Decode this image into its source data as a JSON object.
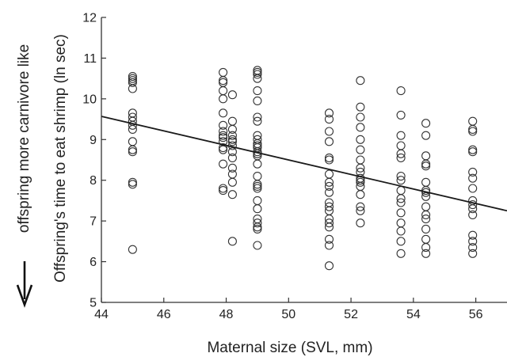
{
  "chart_data": {
    "type": "scatter",
    "xlabel": "Maternal size (SVL, mm)",
    "ylabel": "Offspring's time to eat shrimp (ln sec)",
    "side_annotation": "offspring more carnivore like",
    "xlim": [
      44,
      57
    ],
    "ylim": [
      5,
      12
    ],
    "xticks": [
      44,
      46,
      48,
      50,
      52,
      54,
      56
    ],
    "yticks": [
      5,
      6,
      7,
      8,
      9,
      10,
      11,
      12
    ],
    "grid": false,
    "marker": "open-circle",
    "colors": {
      "points": "#333333",
      "line": "#1a1a1a",
      "axis": "#333333"
    },
    "trend_line": {
      "x": [
        44,
        57
      ],
      "y": [
        9.57,
        7.25
      ]
    },
    "points": [
      [
        45.0,
        10.55
      ],
      [
        45.0,
        10.5
      ],
      [
        45.0,
        10.45
      ],
      [
        45.0,
        10.4
      ],
      [
        45.0,
        10.25
      ],
      [
        45.0,
        9.65
      ],
      [
        45.0,
        9.55
      ],
      [
        45.0,
        9.45
      ],
      [
        45.0,
        9.35
      ],
      [
        45.0,
        9.25
      ],
      [
        45.0,
        8.95
      ],
      [
        45.0,
        8.75
      ],
      [
        45.0,
        8.7
      ],
      [
        45.0,
        7.95
      ],
      [
        45.0,
        7.9
      ],
      [
        45.0,
        6.3
      ],
      [
        47.9,
        10.65
      ],
      [
        47.9,
        10.45
      ],
      [
        47.9,
        10.4
      ],
      [
        47.9,
        10.2
      ],
      [
        47.9,
        10.0
      ],
      [
        47.9,
        9.65
      ],
      [
        47.9,
        9.35
      ],
      [
        47.9,
        9.2
      ],
      [
        47.9,
        9.1
      ],
      [
        47.9,
        9.05
      ],
      [
        47.9,
        8.95
      ],
      [
        47.9,
        8.8
      ],
      [
        47.9,
        8.75
      ],
      [
        47.9,
        8.4
      ],
      [
        47.9,
        7.8
      ],
      [
        47.9,
        7.75
      ],
      [
        48.2,
        10.1
      ],
      [
        48.2,
        9.45
      ],
      [
        48.2,
        9.25
      ],
      [
        48.2,
        9.1
      ],
      [
        48.2,
        9.0
      ],
      [
        48.2,
        8.95
      ],
      [
        48.2,
        8.85
      ],
      [
        48.2,
        8.7
      ],
      [
        48.2,
        8.55
      ],
      [
        48.2,
        8.3
      ],
      [
        48.2,
        8.15
      ],
      [
        48.2,
        7.95
      ],
      [
        48.2,
        7.65
      ],
      [
        48.2,
        6.5
      ],
      [
        49.0,
        10.7
      ],
      [
        49.0,
        10.65
      ],
      [
        49.0,
        10.6
      ],
      [
        49.0,
        10.5
      ],
      [
        49.0,
        10.2
      ],
      [
        49.0,
        9.95
      ],
      [
        49.0,
        9.55
      ],
      [
        49.0,
        9.45
      ],
      [
        49.0,
        9.1
      ],
      [
        49.0,
        9.0
      ],
      [
        49.0,
        8.9
      ],
      [
        49.0,
        8.85
      ],
      [
        49.0,
        8.8
      ],
      [
        49.0,
        8.7
      ],
      [
        49.0,
        8.65
      ],
      [
        49.0,
        8.6
      ],
      [
        49.0,
        8.4
      ],
      [
        49.0,
        8.1
      ],
      [
        49.0,
        7.9
      ],
      [
        49.0,
        7.85
      ],
      [
        49.0,
        7.8
      ],
      [
        49.0,
        7.5
      ],
      [
        49.0,
        7.3
      ],
      [
        49.0,
        7.05
      ],
      [
        49.0,
        6.95
      ],
      [
        49.0,
        6.85
      ],
      [
        49.0,
        6.8
      ],
      [
        49.0,
        6.4
      ],
      [
        51.3,
        9.65
      ],
      [
        51.3,
        9.5
      ],
      [
        51.3,
        9.2
      ],
      [
        51.3,
        8.95
      ],
      [
        51.3,
        8.55
      ],
      [
        51.3,
        8.5
      ],
      [
        51.3,
        8.15
      ],
      [
        51.3,
        7.95
      ],
      [
        51.3,
        7.85
      ],
      [
        51.3,
        7.7
      ],
      [
        51.3,
        7.45
      ],
      [
        51.3,
        7.35
      ],
      [
        51.3,
        7.25
      ],
      [
        51.3,
        7.05
      ],
      [
        51.3,
        6.95
      ],
      [
        51.3,
        6.85
      ],
      [
        51.3,
        6.55
      ],
      [
        51.3,
        6.4
      ],
      [
        51.3,
        5.9
      ],
      [
        52.3,
        10.45
      ],
      [
        52.3,
        9.8
      ],
      [
        52.3,
        9.55
      ],
      [
        52.3,
        9.3
      ],
      [
        52.3,
        9.0
      ],
      [
        52.3,
        8.75
      ],
      [
        52.3,
        8.5
      ],
      [
        52.3,
        8.3
      ],
      [
        52.3,
        8.2
      ],
      [
        52.3,
        8.05
      ],
      [
        52.3,
        8.0
      ],
      [
        52.3,
        7.95
      ],
      [
        52.3,
        7.85
      ],
      [
        52.3,
        7.65
      ],
      [
        52.3,
        7.35
      ],
      [
        52.3,
        7.25
      ],
      [
        52.3,
        6.95
      ],
      [
        53.6,
        10.2
      ],
      [
        53.6,
        9.6
      ],
      [
        53.6,
        9.1
      ],
      [
        53.6,
        8.85
      ],
      [
        53.6,
        8.65
      ],
      [
        53.6,
        8.55
      ],
      [
        53.6,
        8.1
      ],
      [
        53.6,
        8.0
      ],
      [
        53.6,
        7.75
      ],
      [
        53.6,
        7.55
      ],
      [
        53.6,
        7.45
      ],
      [
        53.6,
        7.2
      ],
      [
        53.6,
        6.95
      ],
      [
        53.6,
        6.75
      ],
      [
        53.6,
        6.5
      ],
      [
        53.6,
        6.2
      ],
      [
        54.4,
        9.4
      ],
      [
        54.4,
        9.1
      ],
      [
        54.4,
        8.6
      ],
      [
        54.4,
        8.4
      ],
      [
        54.4,
        8.35
      ],
      [
        54.4,
        7.95
      ],
      [
        54.4,
        7.75
      ],
      [
        54.4,
        7.7
      ],
      [
        54.4,
        7.6
      ],
      [
        54.4,
        7.35
      ],
      [
        54.4,
        7.15
      ],
      [
        54.4,
        7.05
      ],
      [
        54.4,
        6.8
      ],
      [
        54.4,
        6.55
      ],
      [
        54.4,
        6.35
      ],
      [
        54.4,
        6.2
      ],
      [
        55.9,
        9.45
      ],
      [
        55.9,
        9.25
      ],
      [
        55.9,
        9.2
      ],
      [
        55.9,
        8.75
      ],
      [
        55.9,
        8.7
      ],
      [
        55.9,
        8.2
      ],
      [
        55.9,
        8.05
      ],
      [
        55.9,
        7.8
      ],
      [
        55.9,
        7.5
      ],
      [
        55.9,
        7.4
      ],
      [
        55.9,
        7.3
      ],
      [
        55.9,
        7.15
      ],
      [
        55.9,
        6.65
      ],
      [
        55.9,
        6.5
      ],
      [
        55.9,
        6.35
      ],
      [
        55.9,
        6.2
      ]
    ]
  }
}
